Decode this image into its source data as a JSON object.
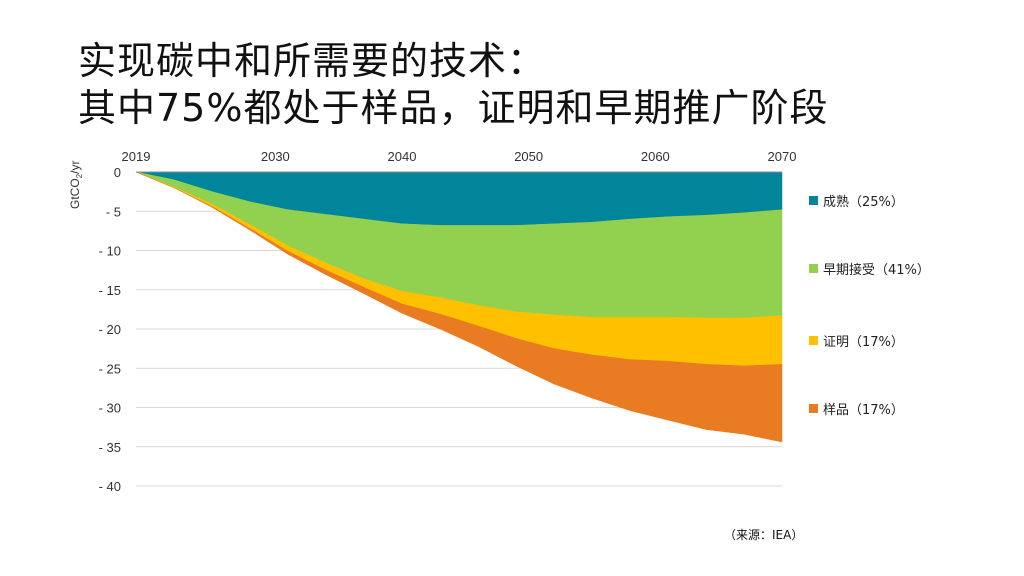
{
  "slide": {
    "title_line1": "实现碳中和所需要的技术：",
    "title_line2": "其中75%都处于样品，证明和早期推广阶段",
    "source": "（来源：IEA）"
  },
  "chart_data": {
    "type": "area",
    "stacked": true,
    "title": "",
    "xlabel": "",
    "ylabel": "GtCO2/yr",
    "ylabel_parts": [
      "GtCO",
      "2",
      "/yr"
    ],
    "xlim": [
      2019,
      2070
    ],
    "ylim": [
      -40,
      0
    ],
    "x_ticks": [
      2019,
      2030,
      2040,
      2050,
      2060,
      2070
    ],
    "y_ticks": [
      0,
      -5,
      -10,
      -15,
      -20,
      -25,
      -30,
      -35,
      -40
    ],
    "y_tick_labels": [
      "0",
      "- 5",
      "- 10",
      "- 15",
      "- 20",
      "- 25",
      "- 30",
      "- 35",
      "- 40"
    ],
    "grid": true,
    "legend_position": "right",
    "x": [
      2019,
      2022,
      2025,
      2028,
      2031,
      2034,
      2037,
      2040,
      2043,
      2046,
      2049,
      2052,
      2055,
      2058,
      2061,
      2064,
      2067,
      2070
    ],
    "series": [
      {
        "name": "成熟",
        "label": "成熟（25%）",
        "color": "#00859b",
        "values": [
          0,
          -1.0,
          -2.5,
          -3.8,
          -4.8,
          -5.4,
          -6.0,
          -6.6,
          -6.8,
          -6.8,
          -6.8,
          -6.6,
          -6.4,
          -6.0,
          -5.7,
          -5.5,
          -5.2,
          -4.8
        ]
      },
      {
        "name": "早期接受",
        "label": "早期接受（41%）",
        "color": "#92d050",
        "values": [
          0,
          -0.9,
          -1.6,
          -2.9,
          -4.6,
          -6.2,
          -7.6,
          -8.6,
          -9.2,
          -10.2,
          -11.0,
          -11.6,
          -12.1,
          -12.5,
          -12.8,
          -13.1,
          -13.4,
          -13.5
        ]
      },
      {
        "name": "证明",
        "label": "证明（17%）",
        "color": "#ffc000",
        "values": [
          0,
          -0.1,
          -0.3,
          -0.5,
          -0.7,
          -0.9,
          -1.1,
          -1.6,
          -2.1,
          -2.6,
          -3.4,
          -4.3,
          -4.8,
          -5.4,
          -5.6,
          -5.9,
          -6.1,
          -6.2
        ]
      },
      {
        "name": "样品",
        "label": "样品（17%）",
        "color": "#e97b22",
        "values": [
          0,
          0,
          -0.1,
          -0.2,
          -0.4,
          -0.6,
          -0.8,
          -1.2,
          -1.9,
          -2.6,
          -3.5,
          -4.5,
          -5.5,
          -6.5,
          -7.5,
          -8.3,
          -8.7,
          -9.9
        ]
      }
    ]
  }
}
